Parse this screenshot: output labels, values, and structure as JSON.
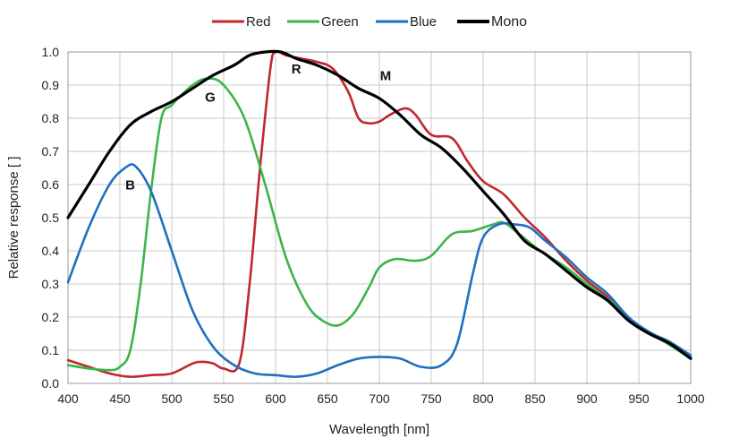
{
  "chart_data": {
    "type": "line",
    "xlabel": "Wavelength [nm]",
    "ylabel": "Relative response [ ]",
    "xlim": [
      400,
      1000
    ],
    "ylim": [
      0,
      1.0
    ],
    "x_ticks": [
      "400",
      "450",
      "500",
      "550",
      "600",
      "650",
      "700",
      "750",
      "800",
      "850",
      "900",
      "950",
      "1000"
    ],
    "y_ticks": [
      "0.0",
      "0.1",
      "0.2",
      "0.3",
      "0.4",
      "0.5",
      "0.6",
      "0.7",
      "0.8",
      "0.9",
      "1.0"
    ],
    "grid": true,
    "legend_position": "top-center",
    "series": [
      {
        "name": "Red",
        "color": "#c0282d",
        "points": [
          [
            400,
            0.07
          ],
          [
            420,
            0.05
          ],
          [
            440,
            0.03
          ],
          [
            460,
            0.02
          ],
          [
            480,
            0.025
          ],
          [
            500,
            0.03
          ],
          [
            520,
            0.06
          ],
          [
            530,
            0.065
          ],
          [
            540,
            0.06
          ],
          [
            550,
            0.045
          ],
          [
            565,
            0.06
          ],
          [
            575,
            0.3
          ],
          [
            585,
            0.65
          ],
          [
            595,
            0.95
          ],
          [
            600,
            1.0
          ],
          [
            610,
            0.99
          ],
          [
            625,
            0.98
          ],
          [
            640,
            0.97
          ],
          [
            655,
            0.95
          ],
          [
            670,
            0.88
          ],
          [
            680,
            0.8
          ],
          [
            690,
            0.785
          ],
          [
            700,
            0.79
          ],
          [
            710,
            0.81
          ],
          [
            725,
            0.83
          ],
          [
            735,
            0.81
          ],
          [
            750,
            0.75
          ],
          [
            770,
            0.74
          ],
          [
            785,
            0.67
          ],
          [
            800,
            0.61
          ],
          [
            820,
            0.57
          ],
          [
            840,
            0.5
          ],
          [
            860,
            0.44
          ],
          [
            880,
            0.37
          ],
          [
            900,
            0.31
          ],
          [
            920,
            0.26
          ],
          [
            940,
            0.19
          ],
          [
            960,
            0.155
          ],
          [
            980,
            0.12
          ],
          [
            1000,
            0.08
          ]
        ]
      },
      {
        "name": "Green",
        "color": "#3bb54a",
        "points": [
          [
            400,
            0.055
          ],
          [
            420,
            0.045
          ],
          [
            440,
            0.04
          ],
          [
            450,
            0.05
          ],
          [
            460,
            0.1
          ],
          [
            470,
            0.3
          ],
          [
            480,
            0.58
          ],
          [
            490,
            0.8
          ],
          [
            500,
            0.84
          ],
          [
            520,
            0.9
          ],
          [
            535,
            0.92
          ],
          [
            550,
            0.9
          ],
          [
            570,
            0.8
          ],
          [
            590,
            0.6
          ],
          [
            610,
            0.38
          ],
          [
            630,
            0.24
          ],
          [
            645,
            0.19
          ],
          [
            660,
            0.175
          ],
          [
            675,
            0.21
          ],
          [
            690,
            0.29
          ],
          [
            700,
            0.35
          ],
          [
            715,
            0.375
          ],
          [
            735,
            0.37
          ],
          [
            750,
            0.385
          ],
          [
            770,
            0.45
          ],
          [
            790,
            0.46
          ],
          [
            810,
            0.48
          ],
          [
            820,
            0.485
          ],
          [
            835,
            0.45
          ],
          [
            855,
            0.4
          ],
          [
            880,
            0.35
          ],
          [
            900,
            0.3
          ],
          [
            930,
            0.23
          ],
          [
            950,
            0.17
          ],
          [
            975,
            0.125
          ],
          [
            1000,
            0.075
          ]
        ]
      },
      {
        "name": "Blue",
        "color": "#1f6fc1",
        "points": [
          [
            400,
            0.305
          ],
          [
            420,
            0.47
          ],
          [
            440,
            0.6
          ],
          [
            455,
            0.65
          ],
          [
            465,
            0.655
          ],
          [
            480,
            0.58
          ],
          [
            500,
            0.4
          ],
          [
            520,
            0.22
          ],
          [
            540,
            0.11
          ],
          [
            560,
            0.055
          ],
          [
            580,
            0.03
          ],
          [
            600,
            0.025
          ],
          [
            620,
            0.02
          ],
          [
            640,
            0.03
          ],
          [
            660,
            0.055
          ],
          [
            680,
            0.075
          ],
          [
            700,
            0.08
          ],
          [
            720,
            0.075
          ],
          [
            740,
            0.05
          ],
          [
            760,
            0.055
          ],
          [
            775,
            0.12
          ],
          [
            790,
            0.33
          ],
          [
            800,
            0.44
          ],
          [
            815,
            0.48
          ],
          [
            830,
            0.48
          ],
          [
            845,
            0.47
          ],
          [
            860,
            0.43
          ],
          [
            880,
            0.38
          ],
          [
            900,
            0.32
          ],
          [
            920,
            0.27
          ],
          [
            940,
            0.2
          ],
          [
            960,
            0.155
          ],
          [
            980,
            0.125
          ],
          [
            1000,
            0.085
          ]
        ]
      },
      {
        "name": "Mono",
        "color": "#000000",
        "points": [
          [
            400,
            0.5
          ],
          [
            420,
            0.6
          ],
          [
            440,
            0.7
          ],
          [
            460,
            0.78
          ],
          [
            480,
            0.82
          ],
          [
            500,
            0.85
          ],
          [
            520,
            0.89
          ],
          [
            540,
            0.93
          ],
          [
            560,
            0.96
          ],
          [
            575,
            0.99
          ],
          [
            590,
            1.0
          ],
          [
            605,
            1.0
          ],
          [
            620,
            0.98
          ],
          [
            640,
            0.96
          ],
          [
            660,
            0.93
          ],
          [
            680,
            0.89
          ],
          [
            700,
            0.86
          ],
          [
            720,
            0.81
          ],
          [
            740,
            0.75
          ],
          [
            760,
            0.71
          ],
          [
            780,
            0.65
          ],
          [
            800,
            0.58
          ],
          [
            820,
            0.51
          ],
          [
            840,
            0.43
          ],
          [
            860,
            0.39
          ],
          [
            880,
            0.34
          ],
          [
            900,
            0.29
          ],
          [
            920,
            0.25
          ],
          [
            940,
            0.19
          ],
          [
            960,
            0.15
          ],
          [
            980,
            0.12
          ],
          [
            1000,
            0.075
          ]
        ]
      }
    ],
    "annotations": [
      {
        "text": "R",
        "x": 620,
        "y": 0.935
      },
      {
        "text": "G",
        "x": 537,
        "y": 0.85
      },
      {
        "text": "B",
        "x": 460,
        "y": 0.585
      },
      {
        "text": "M",
        "x": 706,
        "y": 0.915
      }
    ]
  }
}
